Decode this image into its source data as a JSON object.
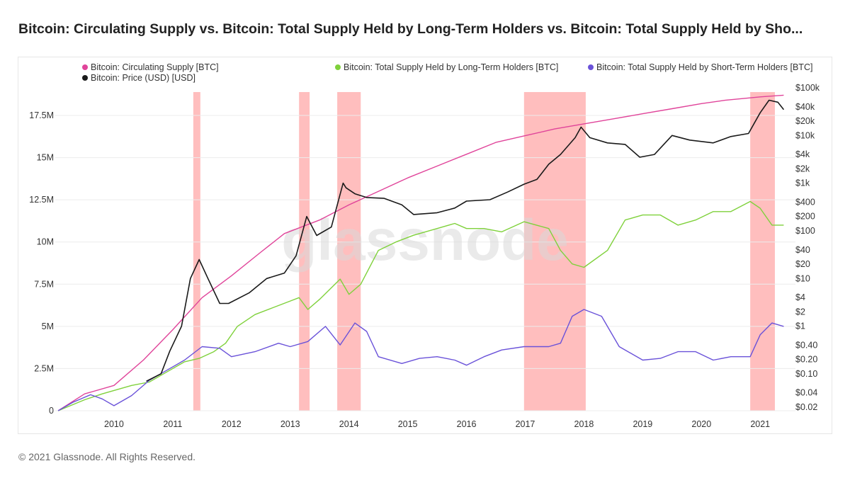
{
  "title": "Bitcoin: Circulating Supply vs. Bitcoin: Total Supply Held by Long-Term Holders vs. Bitcoin: Total Supply Held by Sho...",
  "footer": "© 2021 Glassnode. All Rights Reserved.",
  "watermark": "glassnode",
  "chart_data": {
    "type": "line",
    "x_range": [
      2009.0,
      2021.6
    ],
    "x_ticks": [
      "2010",
      "2011",
      "2012",
      "2013",
      "2014",
      "2015",
      "2016",
      "2017",
      "2018",
      "2019",
      "2020",
      "2021"
    ],
    "y_left": {
      "range": [
        0,
        19000000
      ],
      "ticks": [
        0,
        2500000,
        5000000,
        7500000,
        10000000,
        12500000,
        15000000,
        17500000
      ],
      "tick_labels": [
        "0",
        "2.5M",
        "5M",
        "7.5M",
        "10M",
        "12.5M",
        "15M",
        "17.5M"
      ]
    },
    "y_right": {
      "scale": "log",
      "ticks": [
        0.02,
        0.04,
        0.1,
        0.2,
        0.4,
        1,
        2,
        4,
        10,
        20,
        40,
        100,
        200,
        400,
        1000,
        2000,
        4000,
        10000,
        20000,
        40000,
        100000
      ],
      "tick_labels": [
        "$0.02",
        "$0.04",
        "$0.10",
        "$0.20",
        "$0.40",
        "$1",
        "$2",
        "$4",
        "$10",
        "$20",
        "$40",
        "$100",
        "$200",
        "$400",
        "$1k",
        "$2k",
        "$4k",
        "$10k",
        "$20k",
        "$40k",
        "$100k"
      ]
    },
    "legend": [
      "Bitcoin: Circulating Supply [BTC]",
      "Bitcoin: Total Supply Held by Long-Term Holders [BTC]",
      "Bitcoin: Total Supply Held by Short-Term Holders [BTC]",
      "Bitcoin: Price (USD) [USD]"
    ],
    "legend_placement": "top",
    "highlight_bands": [
      [
        2011.35,
        2011.47
      ],
      [
        2013.15,
        2013.33
      ],
      [
        2013.8,
        2014.2
      ],
      [
        2016.98,
        2018.03
      ],
      [
        2020.83,
        2021.25
      ]
    ],
    "series": [
      {
        "name": "Bitcoin: Circulating Supply [BTC]",
        "axis": "left",
        "color": "#e0449a",
        "x": [
          2009.05,
          2009.5,
          2010.0,
          2010.5,
          2011.0,
          2011.5,
          2012.0,
          2012.5,
          2012.9,
          2013.5,
          2014.0,
          2014.5,
          2015.0,
          2015.5,
          2016.0,
          2016.5,
          2017.0,
          2017.5,
          2018.0,
          2018.5,
          2019.0,
          2019.5,
          2020.0,
          2020.4,
          2021.0,
          2021.4
        ],
        "y": [
          0,
          1000000,
          1500000,
          3000000,
          4800000,
          6700000,
          8000000,
          9400000,
          10500000,
          11300000,
          12200000,
          13000000,
          13800000,
          14500000,
          15200000,
          15900000,
          16300000,
          16700000,
          17000000,
          17300000,
          17600000,
          17900000,
          18200000,
          18400000,
          18600000,
          18700000
        ]
      },
      {
        "name": "Bitcoin: Total Supply Held by Long-Term Holders [BTC]",
        "axis": "left",
        "color": "#7fd13b",
        "x": [
          2009.05,
          2009.5,
          2009.8,
          2010.3,
          2010.6,
          2010.9,
          2011.2,
          2011.45,
          2011.7,
          2011.9,
          2012.1,
          2012.4,
          2012.7,
          2013.0,
          2013.15,
          2013.3,
          2013.5,
          2013.85,
          2014.0,
          2014.2,
          2014.5,
          2014.8,
          2015.1,
          2015.5,
          2015.8,
          2016.0,
          2016.3,
          2016.6,
          2016.98,
          2017.4,
          2017.6,
          2017.8,
          2018.0,
          2018.4,
          2018.7,
          2019.0,
          2019.3,
          2019.6,
          2019.9,
          2020.2,
          2020.5,
          2020.83,
          2021.0,
          2021.2,
          2021.4
        ],
        "y": [
          0,
          650000,
          1000000,
          1500000,
          1700000,
          2300000,
          2900000,
          3100000,
          3500000,
          4000000,
          5000000,
          5700000,
          6100000,
          6500000,
          6700000,
          6000000,
          6600000,
          7800000,
          6900000,
          7500000,
          9500000,
          10000000,
          10400000,
          10800000,
          11100000,
          10800000,
          10800000,
          10600000,
          11200000,
          10800000,
          9500000,
          8700000,
          8500000,
          9500000,
          11300000,
          11600000,
          11600000,
          11000000,
          11300000,
          11800000,
          11800000,
          12400000,
          12000000,
          11000000,
          11000000
        ]
      },
      {
        "name": "Bitcoin: Total Supply Held by Short-Term Holders [BTC]",
        "axis": "left",
        "color": "#6a52d9",
        "x": [
          2009.05,
          2009.3,
          2009.6,
          2009.8,
          2010.0,
          2010.3,
          2010.6,
          2010.9,
          2011.2,
          2011.5,
          2011.8,
          2012.0,
          2012.4,
          2012.8,
          2013.0,
          2013.3,
          2013.6,
          2013.85,
          2014.1,
          2014.3,
          2014.5,
          2014.9,
          2015.2,
          2015.5,
          2015.8,
          2016.0,
          2016.3,
          2016.6,
          2016.98,
          2017.4,
          2017.6,
          2017.8,
          2018.0,
          2018.3,
          2018.6,
          2019.0,
          2019.3,
          2019.6,
          2019.9,
          2020.2,
          2020.5,
          2020.83,
          2021.0,
          2021.2,
          2021.4
        ],
        "y": [
          0,
          500000,
          950000,
          700000,
          300000,
          900000,
          1800000,
          2400000,
          3000000,
          3800000,
          3700000,
          3200000,
          3500000,
          4000000,
          3800000,
          4100000,
          5000000,
          3900000,
          5200000,
          4700000,
          3200000,
          2800000,
          3100000,
          3200000,
          3000000,
          2700000,
          3200000,
          3600000,
          3800000,
          3800000,
          4000000,
          5600000,
          6000000,
          5600000,
          3800000,
          3000000,
          3100000,
          3500000,
          3500000,
          3000000,
          3200000,
          3200000,
          4500000,
          5200000,
          5000000
        ]
      },
      {
        "name": "Bitcoin: Price (USD) [USD]",
        "axis": "right",
        "color": "#1a1a1a",
        "x": [
          2010.55,
          2010.8,
          2010.95,
          2011.15,
          2011.3,
          2011.45,
          2011.6,
          2011.8,
          2011.95,
          2012.3,
          2012.6,
          2012.9,
          2013.1,
          2013.28,
          2013.45,
          2013.7,
          2013.9,
          2013.95,
          2014.1,
          2014.3,
          2014.6,
          2014.9,
          2015.1,
          2015.5,
          2015.8,
          2016.0,
          2016.4,
          2016.7,
          2016.98,
          2017.2,
          2017.4,
          2017.6,
          2017.85,
          2017.95,
          2018.1,
          2018.4,
          2018.7,
          2018.95,
          2019.2,
          2019.5,
          2019.8,
          2020.2,
          2020.5,
          2020.8,
          2021.0,
          2021.15,
          2021.3,
          2021.4
        ],
        "y": [
          0.07,
          0.1,
          0.3,
          1,
          10,
          25,
          10,
          3,
          3,
          5,
          10,
          13,
          30,
          200,
          80,
          120,
          1000,
          800,
          600,
          500,
          480,
          350,
          220,
          240,
          300,
          420,
          450,
          650,
          950,
          1200,
          2500,
          4000,
          9000,
          15000,
          9000,
          7000,
          6500,
          3500,
          4000,
          10000,
          8000,
          7000,
          9500,
          11000,
          30000,
          55000,
          50000,
          35000
        ]
      }
    ]
  }
}
